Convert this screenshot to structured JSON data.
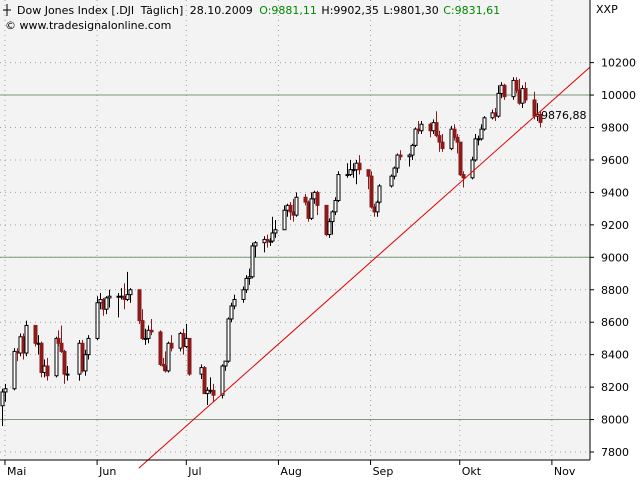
{
  "header": {
    "symbol": "Dow Jones Index [.DJI",
    "period": "Täglich]",
    "date": "28.10.2009",
    "open": "O:9881,11",
    "high": "H:9902,35",
    "low": "L:9801,30",
    "close": "C:9831,61",
    "watermark": "© www.tradesignalonline.com"
  },
  "colors": {
    "up": "#000000",
    "down": "#8b1a1a",
    "trend": "#e00000",
    "open_text": "#008800",
    "close_text": "#008800",
    "level_text": "#cc0000",
    "plot_bg": "#f3f3f3",
    "grid_dot": "#a0a0a0",
    "hline": "#7a9a7a"
  },
  "chart_data": {
    "type": "candlestick",
    "title": "Dow Jones Index [.DJI Täglich]",
    "exchange_label": "XXP",
    "x_ticks": [
      "Mai",
      "Jun",
      "Jul",
      "Aug",
      "Sep",
      "Okt",
      "Nov"
    ],
    "y_ticks": [
      7800,
      8000,
      8200,
      8400,
      8600,
      8800,
      9000,
      9200,
      9400,
      9600,
      9800,
      10000,
      10200
    ],
    "ylim": [
      7750,
      10240
    ],
    "horizontal_lines": [
      8000,
      9000,
      10000
    ],
    "last_level_label": "9876,88",
    "last_level_value": 9876.88,
    "trendline": {
      "start": {
        "date": "2009-06-15",
        "value": 7700
      },
      "end": {
        "date": "2009-11-18",
        "value": 10240
      }
    },
    "ohlc": [
      [
        "2009-04-30",
        8085,
        8190,
        7960,
        8170
      ],
      [
        "2009-05-01",
        8170,
        8220,
        8110,
        8190
      ],
      [
        "2009-05-04",
        8190,
        8440,
        8180,
        8420
      ],
      [
        "2009-05-05",
        8420,
        8440,
        8360,
        8410
      ],
      [
        "2009-05-06",
        8410,
        8530,
        8390,
        8510
      ],
      [
        "2009-05-07",
        8510,
        8530,
        8370,
        8410
      ],
      [
        "2009-05-08",
        8410,
        8610,
        8390,
        8580
      ],
      [
        "2009-05-11",
        8580,
        8580,
        8450,
        8470
      ],
      [
        "2009-05-12",
        8470,
        8520,
        8400,
        8470
      ],
      [
        "2009-05-13",
        8470,
        8480,
        8260,
        8290
      ],
      [
        "2009-05-14",
        8290,
        8370,
        8260,
        8330
      ],
      [
        "2009-05-15",
        8330,
        8380,
        8240,
        8270
      ],
      [
        "2009-05-18",
        8270,
        8510,
        8260,
        8500
      ],
      [
        "2009-05-19",
        8500,
        8550,
        8450,
        8470
      ],
      [
        "2009-05-20",
        8470,
        8580,
        8410,
        8420
      ],
      [
        "2009-05-21",
        8420,
        8430,
        8220,
        8280
      ],
      [
        "2009-05-22",
        8280,
        8330,
        8240,
        8280
      ],
      [
        "2009-05-26",
        8280,
        8490,
        8240,
        8470
      ],
      [
        "2009-05-27",
        8470,
        8490,
        8290,
        8300
      ],
      [
        "2009-05-28",
        8300,
        8430,
        8270,
        8400
      ],
      [
        "2009-05-29",
        8400,
        8520,
        8370,
        8500
      ],
      [
        "2009-06-01",
        8500,
        8760,
        8490,
        8720
      ],
      [
        "2009-06-02",
        8720,
        8780,
        8680,
        8740
      ],
      [
        "2009-06-03",
        8740,
        8750,
        8640,
        8680
      ],
      [
        "2009-06-04",
        8680,
        8760,
        8650,
        8750
      ],
      [
        "2009-06-05",
        8750,
        8800,
        8690,
        8760
      ],
      [
        "2009-06-08",
        8760,
        8780,
        8630,
        8760
      ],
      [
        "2009-06-09",
        8760,
        8810,
        8740,
        8760
      ],
      [
        "2009-06-10",
        8760,
        8840,
        8680,
        8740
      ],
      [
        "2009-06-11",
        8740,
        8910,
        8730,
        8770
      ],
      [
        "2009-06-12",
        8770,
        8810,
        8720,
        8800
      ],
      [
        "2009-06-15",
        8800,
        8800,
        8590,
        8610
      ],
      [
        "2009-06-16",
        8610,
        8680,
        8490,
        8500
      ],
      [
        "2009-06-17",
        8500,
        8560,
        8460,
        8500
      ],
      [
        "2009-06-18",
        8500,
        8580,
        8470,
        8550
      ],
      [
        "2009-06-19",
        8550,
        8620,
        8520,
        8540
      ],
      [
        "2009-06-22",
        8540,
        8550,
        8330,
        8340
      ],
      [
        "2009-06-23",
        8340,
        8380,
        8300,
        8330
      ],
      [
        "2009-06-24",
        8330,
        8420,
        8290,
        8300
      ],
      [
        "2009-06-25",
        8300,
        8480,
        8290,
        8470
      ],
      [
        "2009-06-26",
        8470,
        8520,
        8420,
        8440
      ],
      [
        "2009-06-29",
        8440,
        8540,
        8420,
        8530
      ],
      [
        "2009-06-30",
        8530,
        8560,
        8400,
        8450
      ],
      [
        "2009-07-01",
        8450,
        8590,
        8440,
        8500
      ],
      [
        "2009-07-02",
        8500,
        8500,
        8270,
        8280
      ],
      [
        "2009-07-06",
        8280,
        8340,
        8250,
        8320
      ],
      [
        "2009-07-07",
        8320,
        8330,
        8160,
        8160
      ],
      [
        "2009-07-08",
        8160,
        8200,
        8090,
        8180
      ],
      [
        "2009-07-09",
        8180,
        8260,
        8160,
        8180
      ],
      [
        "2009-07-10",
        8180,
        8220,
        8110,
        8150
      ],
      [
        "2009-07-13",
        8150,
        8340,
        8130,
        8330
      ],
      [
        "2009-07-14",
        8330,
        8360,
        8300,
        8360
      ],
      [
        "2009-07-15",
        8360,
        8630,
        8350,
        8620
      ],
      [
        "2009-07-16",
        8620,
        8720,
        8600,
        8700
      ],
      [
        "2009-07-17",
        8700,
        8770,
        8680,
        8740
      ],
      [
        "2009-07-20",
        8740,
        8820,
        8720,
        8800
      ],
      [
        "2009-07-21",
        8800,
        8890,
        8780,
        8870
      ],
      [
        "2009-07-22",
        8870,
        8930,
        8830,
        8880
      ],
      [
        "2009-07-23",
        8880,
        9090,
        8870,
        9070
      ],
      [
        "2009-07-24",
        9070,
        9100,
        9000,
        9090
      ],
      [
        "2009-07-27",
        9090,
        9130,
        9030,
        9110
      ],
      [
        "2009-07-28",
        9110,
        9140,
        9060,
        9100
      ],
      [
        "2009-07-29",
        9100,
        9120,
        9070,
        9100
      ],
      [
        "2009-07-30",
        9100,
        9250,
        9090,
        9150
      ],
      [
        "2009-07-31",
        9150,
        9230,
        9120,
        9170
      ],
      [
        "2009-08-03",
        9170,
        9320,
        9170,
        9290
      ],
      [
        "2009-08-04",
        9290,
        9330,
        9250,
        9320
      ],
      [
        "2009-08-05",
        9320,
        9340,
        9230,
        9280
      ],
      [
        "2009-08-06",
        9280,
        9360,
        9220,
        9260
      ],
      [
        "2009-08-07",
        9260,
        9400,
        9250,
        9370
      ],
      [
        "2009-08-10",
        9370,
        9390,
        9320,
        9340
      ],
      [
        "2009-08-11",
        9340,
        9350,
        9220,
        9240
      ],
      [
        "2009-08-12",
        9240,
        9400,
        9230,
        9360
      ],
      [
        "2009-08-13",
        9360,
        9410,
        9330,
        9400
      ],
      [
        "2009-08-14",
        9400,
        9410,
        9260,
        9320
      ],
      [
        "2009-08-17",
        9320,
        9320,
        9130,
        9140
      ],
      [
        "2009-08-18",
        9140,
        9240,
        9120,
        9220
      ],
      [
        "2009-08-19",
        9220,
        9290,
        9140,
        9280
      ],
      [
        "2009-08-20",
        9280,
        9370,
        9260,
        9350
      ],
      [
        "2009-08-21",
        9350,
        9530,
        9340,
        9510
      ],
      [
        "2009-08-24",
        9510,
        9580,
        9490,
        9510
      ],
      [
        "2009-08-25",
        9510,
        9600,
        9500,
        9540
      ],
      [
        "2009-08-26",
        9540,
        9580,
        9490,
        9540
      ],
      [
        "2009-08-27",
        9540,
        9600,
        9450,
        9580
      ],
      [
        "2009-08-28",
        9580,
        9630,
        9510,
        9540
      ],
      [
        "2009-08-31",
        9540,
        9540,
        9420,
        9500
      ],
      [
        "2009-09-01",
        9500,
        9530,
        9300,
        9310
      ],
      [
        "2009-09-02",
        9310,
        9330,
        9250,
        9280
      ],
      [
        "2009-09-03",
        9280,
        9350,
        9250,
        9340
      ],
      [
        "2009-09-04",
        9340,
        9450,
        9330,
        9440
      ],
      [
        "2009-09-08",
        9440,
        9510,
        9430,
        9500
      ],
      [
        "2009-09-09",
        9500,
        9560,
        9480,
        9550
      ],
      [
        "2009-09-10",
        9550,
        9640,
        9520,
        9630
      ],
      [
        "2009-09-11",
        9630,
        9660,
        9600,
        9620
      ],
      [
        "2009-09-14",
        9620,
        9640,
        9560,
        9630
      ],
      [
        "2009-09-15",
        9630,
        9700,
        9600,
        9690
      ],
      [
        "2009-09-16",
        9690,
        9800,
        9680,
        9790
      ],
      [
        "2009-09-17",
        9790,
        9840,
        9760,
        9780
      ],
      [
        "2009-09-18",
        9780,
        9840,
        9760,
        9820
      ],
      [
        "2009-09-21",
        9820,
        9830,
        9740,
        9780
      ],
      [
        "2009-09-22",
        9780,
        9850,
        9760,
        9830
      ],
      [
        "2009-09-23",
        9830,
        9900,
        9740,
        9750
      ],
      [
        "2009-09-24",
        9750,
        9780,
        9650,
        9710
      ],
      [
        "2009-09-25",
        9710,
        9760,
        9650,
        9670
      ],
      [
        "2009-09-28",
        9670,
        9810,
        9660,
        9790
      ],
      [
        "2009-09-29",
        9790,
        9820,
        9720,
        9740
      ],
      [
        "2009-09-30",
        9740,
        9760,
        9640,
        9710
      ],
      [
        "2009-10-01",
        9710,
        9710,
        9500,
        9510
      ],
      [
        "2009-10-02",
        9510,
        9530,
        9430,
        9490
      ],
      [
        "2009-10-05",
        9490,
        9620,
        9480,
        9600
      ],
      [
        "2009-10-06",
        9600,
        9760,
        9590,
        9730
      ],
      [
        "2009-10-07",
        9730,
        9750,
        9690,
        9730
      ],
      [
        "2009-10-08",
        9730,
        9820,
        9720,
        9790
      ],
      [
        "2009-10-09",
        9790,
        9870,
        9780,
        9860
      ],
      [
        "2009-10-12",
        9860,
        9910,
        9850,
        9890
      ],
      [
        "2009-10-13",
        9890,
        9920,
        9840,
        9870
      ],
      [
        "2009-10-14",
        9870,
        10060,
        9860,
        10010
      ],
      [
        "2009-10-15",
        10010,
        10080,
        9980,
        10060
      ],
      [
        "2009-10-16",
        10060,
        10070,
        9970,
        9990
      ],
      [
        "2009-10-19",
        9990,
        10110,
        9970,
        10090
      ],
      [
        "2009-10-20",
        10090,
        10110,
        10010,
        10030
      ],
      [
        "2009-10-21",
        10030,
        10100,
        9940,
        9950
      ],
      [
        "2009-10-22",
        9950,
        10060,
        9920,
        10040
      ],
      [
        "2009-10-23",
        10040,
        10080,
        9950,
        9970
      ],
      [
        "2009-10-26",
        9970,
        10020,
        9850,
        9870
      ],
      [
        "2009-10-27",
        9870,
        9950,
        9840,
        9880
      ],
      [
        "2009-10-28",
        9881.11,
        9902.35,
        9801.3,
        9831.61
      ]
    ]
  }
}
